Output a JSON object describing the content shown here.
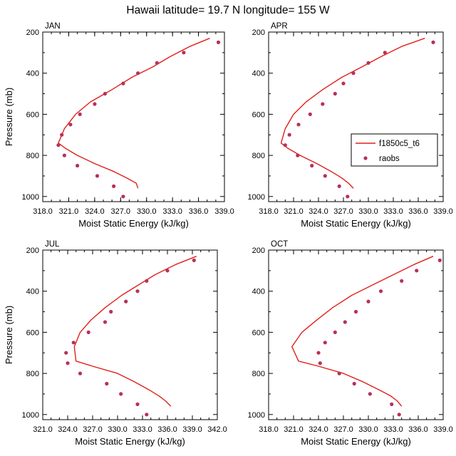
{
  "figure_title": "Hawaii  latitude= 19.7 N longitude= 155 W",
  "colors": {
    "model_line": "#e0201b",
    "obs_marker": "#b8305a",
    "axis": "#000000"
  },
  "legend": {
    "line_label": "f1850c5_t6",
    "marker_label": "raobs"
  },
  "chart_data": [
    {
      "type": "line",
      "panel_label": "JAN",
      "xlabel": "Moist Static Energy (kJ/kg)",
      "ylabel": "Pressure (mb)",
      "xlim": [
        318.0,
        339.0
      ],
      "ylim": [
        1025,
        200
      ],
      "xticks": [
        "318.0",
        "321.0",
        "324.0",
        "327.0",
        "330.0",
        "333.0",
        "336.0",
        "339.0"
      ],
      "yticks": [
        "200",
        "400",
        "600",
        "800",
        "1000"
      ],
      "series": [
        {
          "name": "f1850c5_t6",
          "kind": "line",
          "x": [
            337.3,
            335.0,
            332.7,
            330.7,
            328.3,
            326.0,
            323.5,
            321.8,
            320.5,
            319.8,
            320.6,
            322.0,
            324.0,
            326.3,
            327.7,
            328.8,
            329.0
          ],
          "y": [
            230,
            270,
            320,
            370,
            420,
            480,
            540,
            600,
            670,
            740,
            765,
            800,
            840,
            880,
            910,
            935,
            960
          ]
        },
        {
          "name": "raobs",
          "kind": "marker",
          "x": [
            338.3,
            334.3,
            331.2,
            329.0,
            327.3,
            325.2,
            324.0,
            322.3,
            321.2,
            320.2,
            319.8,
            320.5,
            322.0,
            324.3,
            326.2,
            327.3
          ],
          "y": [
            250,
            300,
            350,
            400,
            450,
            500,
            550,
            600,
            650,
            700,
            750,
            800,
            850,
            900,
            950,
            1000
          ]
        }
      ]
    },
    {
      "type": "line",
      "panel_label": "APR",
      "xlabel": "Moist Static Energy (kJ/kg)",
      "ylabel": "",
      "xlim": [
        318.0,
        339.0
      ],
      "ylim": [
        1025,
        200
      ],
      "xticks": [
        "318.0",
        "321.0",
        "324.0",
        "327.0",
        "330.0",
        "333.0",
        "336.0",
        "339.0"
      ],
      "yticks": [
        "200",
        "400",
        "600",
        "800",
        "1000"
      ],
      "series": [
        {
          "name": "f1850c5_t6",
          "kind": "line",
          "x": [
            336.8,
            334.0,
            331.5,
            329.2,
            326.8,
            324.5,
            322.5,
            321.0,
            320.0,
            319.5,
            320.3,
            321.8,
            323.8,
            325.6,
            326.8,
            327.6,
            328.2
          ],
          "y": [
            230,
            270,
            320,
            370,
            420,
            480,
            540,
            600,
            670,
            740,
            765,
            800,
            840,
            880,
            910,
            935,
            960
          ]
        },
        {
          "name": "raobs",
          "kind": "marker",
          "x": [
            337.8,
            332.0,
            330.0,
            328.2,
            327.0,
            326.0,
            324.5,
            323.0,
            321.6,
            320.5,
            320.0,
            321.5,
            323.2,
            324.8,
            326.5,
            327.5
          ],
          "y": [
            250,
            300,
            350,
            400,
            450,
            500,
            550,
            600,
            650,
            700,
            750,
            800,
            850,
            900,
            950,
            1000
          ]
        }
      ]
    },
    {
      "type": "line",
      "panel_label": "JUL",
      "xlabel": "Moist Static Energy (kJ/kg)",
      "ylabel": "Pressure (mb)",
      "xlim": [
        321.0,
        342.0
      ],
      "ylim": [
        1025,
        200
      ],
      "xticks": [
        "321.0",
        "324.0",
        "327.0",
        "330.0",
        "333.0",
        "336.0",
        "339.0",
        "342.0"
      ],
      "yticks": [
        "200",
        "400",
        "600",
        "800",
        "1000"
      ],
      "series": [
        {
          "name": "f1850c5_t6",
          "kind": "line",
          "x": [
            339.5,
            337.0,
            334.5,
            332.5,
            330.5,
            328.5,
            326.8,
            325.5,
            324.8,
            325.0,
            327.0,
            330.0,
            332.0,
            333.8,
            335.0,
            335.8,
            336.4
          ],
          "y": [
            230,
            270,
            320,
            370,
            420,
            480,
            540,
            600,
            670,
            740,
            765,
            800,
            840,
            880,
            910,
            935,
            960
          ]
        },
        {
          "name": "raobs",
          "kind": "marker",
          "x": [
            339.2,
            336.0,
            333.5,
            332.4,
            331.0,
            329.2,
            328.5,
            326.5,
            324.7,
            323.8,
            324.0,
            325.5,
            328.7,
            330.4,
            332.4,
            333.5
          ],
          "y": [
            250,
            300,
            350,
            400,
            450,
            500,
            550,
            600,
            650,
            700,
            750,
            800,
            850,
            900,
            950,
            1000
          ]
        }
      ]
    },
    {
      "type": "line",
      "panel_label": "OCT",
      "xlabel": "Moist Static Energy (kJ/kg)",
      "ylabel": "",
      "xlim": [
        318.0,
        339.0
      ],
      "ylim": [
        1025,
        200
      ],
      "xticks": [
        "318.0",
        "321.0",
        "324.0",
        "327.0",
        "330.0",
        "333.0",
        "336.0",
        "339.0"
      ],
      "yticks": [
        "200",
        "400",
        "600",
        "800",
        "1000"
      ],
      "series": [
        {
          "name": "f1850c5_t6",
          "kind": "line",
          "x": [
            337.8,
            335.5,
            333.0,
            330.5,
            328.0,
            325.7,
            323.8,
            322.0,
            320.8,
            321.6,
            324.0,
            327.0,
            329.3,
            331.3,
            332.7,
            333.5,
            334.0
          ],
          "y": [
            230,
            270,
            320,
            370,
            420,
            480,
            540,
            600,
            670,
            740,
            765,
            800,
            840,
            880,
            910,
            935,
            960
          ]
        },
        {
          "name": "raobs",
          "kind": "marker",
          "x": [
            338.6,
            335.8,
            334.0,
            331.5,
            330.0,
            328.5,
            327.2,
            326.0,
            324.8,
            324.0,
            324.2,
            326.5,
            328.3,
            330.2,
            332.8,
            333.7
          ],
          "y": [
            250,
            300,
            350,
            400,
            450,
            500,
            550,
            600,
            650,
            700,
            750,
            800,
            850,
            900,
            950,
            1000
          ]
        }
      ]
    }
  ]
}
